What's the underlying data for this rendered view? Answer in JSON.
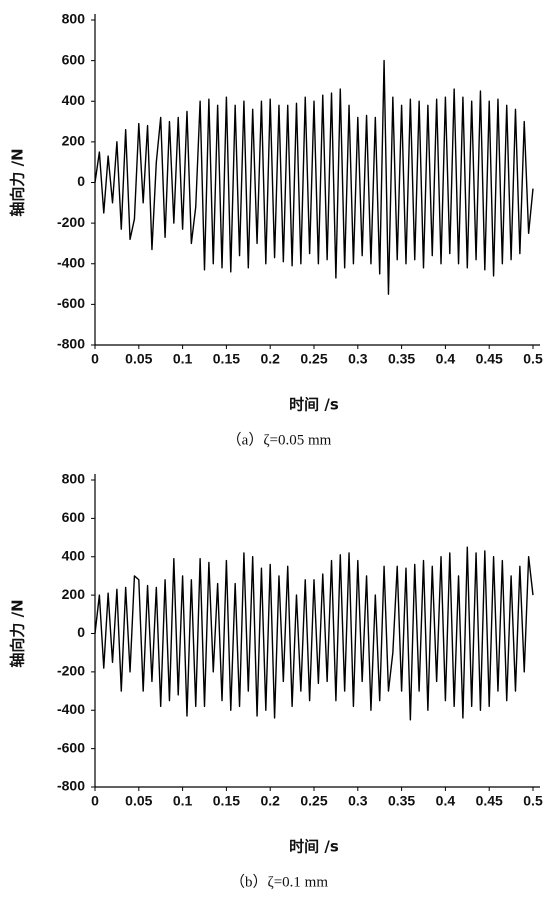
{
  "chart_data": [
    {
      "type": "line",
      "xlabel": "时间 /s",
      "ylabel": "轴向力 /N",
      "caption": "（a）ζ=0.05 mm",
      "color": "#000000",
      "xlim": [
        0,
        0.5
      ],
      "ylim": [
        -800,
        800
      ],
      "xticks": [
        0,
        0.05,
        0.1,
        0.15,
        0.2,
        0.25,
        0.3,
        0.35,
        0.4,
        0.45,
        0.5
      ],
      "yticks": [
        -800,
        -600,
        -400,
        -200,
        0,
        200,
        400,
        600,
        800
      ],
      "x": [
        0,
        0.005,
        0.01,
        0.015,
        0.02,
        0.025,
        0.03,
        0.035,
        0.04,
        0.045,
        0.05,
        0.055,
        0.06,
        0.065,
        0.07,
        0.075,
        0.08,
        0.085,
        0.09,
        0.095,
        0.1,
        0.105,
        0.11,
        0.115,
        0.12,
        0.125,
        0.13,
        0.135,
        0.14,
        0.145,
        0.15,
        0.155,
        0.16,
        0.165,
        0.17,
        0.175,
        0.18,
        0.185,
        0.19,
        0.195,
        0.2,
        0.205,
        0.21,
        0.215,
        0.22,
        0.225,
        0.23,
        0.235,
        0.24,
        0.245,
        0.25,
        0.255,
        0.26,
        0.265,
        0.27,
        0.275,
        0.28,
        0.285,
        0.29,
        0.295,
        0.3,
        0.305,
        0.31,
        0.315,
        0.32,
        0.325,
        0.33,
        0.335,
        0.34,
        0.345,
        0.35,
        0.355,
        0.36,
        0.365,
        0.37,
        0.375,
        0.38,
        0.385,
        0.39,
        0.395,
        0.4,
        0.405,
        0.41,
        0.415,
        0.42,
        0.425,
        0.43,
        0.435,
        0.44,
        0.445,
        0.45,
        0.455,
        0.46,
        0.465,
        0.47,
        0.475,
        0.48,
        0.485,
        0.49,
        0.495,
        0.5
      ],
      "values": [
        0,
        150,
        -150,
        130,
        -100,
        200,
        -230,
        260,
        -280,
        -180,
        290,
        -100,
        280,
        -330,
        100,
        320,
        -270,
        300,
        -200,
        320,
        -230,
        350,
        -300,
        -120,
        400,
        -430,
        410,
        -400,
        380,
        -420,
        420,
        -440,
        380,
        -360,
        400,
        -420,
        360,
        -300,
        400,
        -400,
        410,
        -370,
        380,
        -390,
        380,
        -410,
        390,
        -400,
        420,
        -350,
        400,
        -400,
        430,
        -380,
        440,
        -470,
        460,
        -420,
        380,
        -400,
        320,
        -360,
        330,
        -400,
        320,
        -450,
        600,
        -550,
        420,
        -380,
        380,
        -400,
        410,
        -380,
        400,
        -420,
        380,
        -360,
        410,
        -400,
        420,
        -350,
        460,
        -400,
        420,
        -420,
        400,
        -380,
        450,
        -430,
        400,
        -460,
        410,
        -400,
        380,
        -380,
        360,
        -350,
        300,
        -250,
        -30
      ]
    },
    {
      "type": "line",
      "xlabel": "时间 /s",
      "ylabel": "轴向力 /N",
      "caption": "（b）ζ=0.1 mm",
      "color": "#000000",
      "xlim": [
        0,
        0.5
      ],
      "ylim": [
        -800,
        800
      ],
      "xticks": [
        0,
        0.05,
        0.1,
        0.15,
        0.2,
        0.25,
        0.3,
        0.35,
        0.4,
        0.45,
        0.5
      ],
      "yticks": [
        -800,
        -600,
        -400,
        -200,
        0,
        200,
        400,
        600,
        800
      ],
      "x": [
        0,
        0.005,
        0.01,
        0.015,
        0.02,
        0.025,
        0.03,
        0.035,
        0.04,
        0.045,
        0.05,
        0.055,
        0.06,
        0.065,
        0.07,
        0.075,
        0.08,
        0.085,
        0.09,
        0.095,
        0.1,
        0.105,
        0.11,
        0.115,
        0.12,
        0.125,
        0.13,
        0.135,
        0.14,
        0.145,
        0.15,
        0.155,
        0.16,
        0.165,
        0.17,
        0.175,
        0.18,
        0.185,
        0.19,
        0.195,
        0.2,
        0.205,
        0.21,
        0.215,
        0.22,
        0.225,
        0.23,
        0.235,
        0.24,
        0.245,
        0.25,
        0.255,
        0.26,
        0.265,
        0.27,
        0.275,
        0.28,
        0.285,
        0.29,
        0.295,
        0.3,
        0.305,
        0.31,
        0.315,
        0.32,
        0.325,
        0.33,
        0.335,
        0.34,
        0.345,
        0.35,
        0.355,
        0.36,
        0.365,
        0.37,
        0.375,
        0.38,
        0.385,
        0.39,
        0.395,
        0.4,
        0.405,
        0.41,
        0.415,
        0.42,
        0.425,
        0.43,
        0.435,
        0.44,
        0.445,
        0.45,
        0.455,
        0.46,
        0.465,
        0.47,
        0.475,
        0.48,
        0.485,
        0.49,
        0.495,
        0.5
      ],
      "values": [
        0,
        200,
        -180,
        210,
        -150,
        230,
        -300,
        240,
        -200,
        300,
        280,
        -300,
        250,
        -250,
        240,
        -380,
        280,
        -350,
        390,
        -320,
        300,
        -430,
        280,
        -380,
        390,
        -380,
        370,
        -200,
        260,
        -350,
        380,
        -400,
        260,
        -380,
        420,
        -300,
        400,
        -430,
        340,
        -400,
        360,
        -440,
        300,
        -250,
        350,
        -380,
        200,
        -300,
        280,
        -350,
        280,
        -260,
        310,
        -250,
        380,
        -350,
        410,
        -300,
        420,
        -380,
        380,
        -250,
        300,
        -400,
        200,
        -350,
        350,
        -300,
        -100,
        350,
        -300,
        340,
        -450,
        360,
        -300,
        380,
        -400,
        350,
        -250,
        400,
        -350,
        420,
        -380,
        300,
        -440,
        450,
        -380,
        420,
        -400,
        430,
        -380,
        400,
        -300,
        380,
        -350,
        300,
        -300,
        350,
        -200,
        400,
        200
      ]
    }
  ]
}
